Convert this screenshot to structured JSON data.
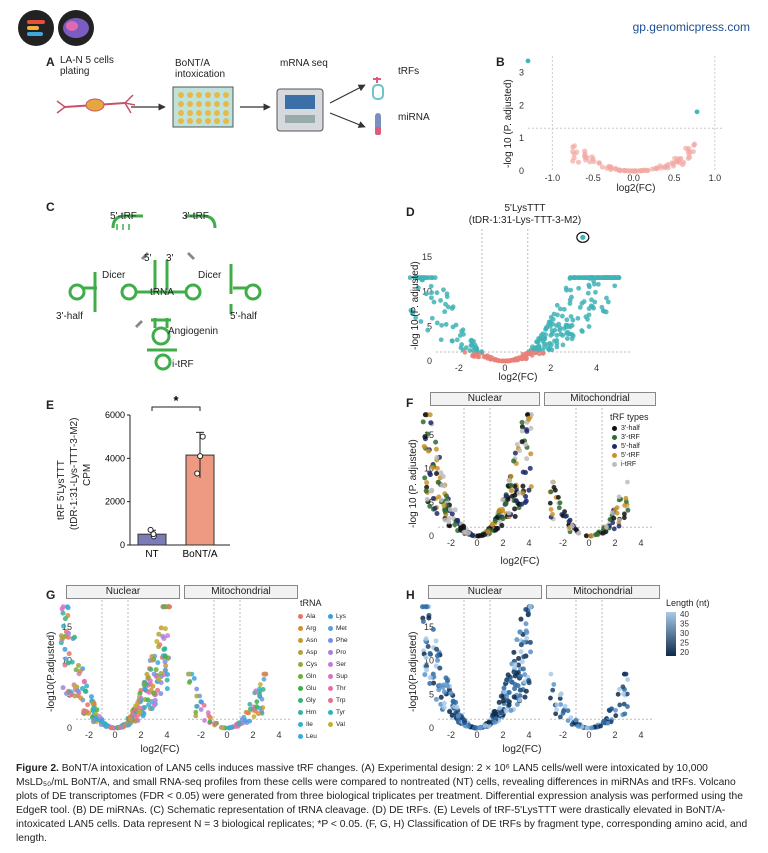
{
  "header": {
    "site": "gp.genomicpress.com"
  },
  "panelA": {
    "letter": "A",
    "cells_label": "LA-N 5 cells\nplating",
    "intox_label": "BoNT/A\nintoxication",
    "seq_label": "mRNA seq",
    "out1": "tRFs",
    "out2": "miRNA"
  },
  "panelB": {
    "letter": "B",
    "ylabel": "-log 10 (P. adjusted)",
    "xlabel": "log2(FC)",
    "xticks": [
      "-1.0",
      "-0.5",
      "0.0",
      "0.5",
      "1.0"
    ],
    "yticks": [
      "0",
      "1",
      "2",
      "3"
    ]
  },
  "panelC": {
    "letter": "C",
    "labels": [
      "5'-tRF",
      "3'-tRF",
      "5'",
      "3'",
      "Dicer",
      "Dicer",
      "tRNA",
      "3'-half",
      "5'-half",
      "Angiogenin",
      "i-tRF"
    ]
  },
  "panelD": {
    "letter": "D",
    "title1": "5'LysTTT",
    "title2": "(tDR-1:31-Lys-TTT-3-M2)",
    "ylabel": "-log 10 (P. adjusted)",
    "xlabel": "log2(FC)",
    "xticks": [
      "-2",
      "0",
      "2",
      "4"
    ],
    "yticks": [
      "0",
      "5",
      "10",
      "15"
    ]
  },
  "panelE": {
    "letter": "E",
    "ylabel1": "tRF 5'LysTTT",
    "ylabel2": "(tDR-1:31-Lys-TTT-3-M2)",
    "ylabel3": "CPM",
    "yticks": [
      "0",
      "2000",
      "4000",
      "6000"
    ],
    "significance": "*",
    "colors": {
      "NT": "#7b7bb8",
      "BoNT/A": "#ee9a82"
    }
  },
  "panelF": {
    "letter": "F",
    "facets": [
      "Nuclear",
      "Mitochondrial"
    ],
    "ylabel": "-log 10 (P. adjusted)",
    "xlabel": "log2(FC)",
    "legend_title": "tRF types",
    "legend": [
      {
        "name": "3'-half",
        "color": "#111111"
      },
      {
        "name": "3'-tRF",
        "color": "#2f6b2f"
      },
      {
        "name": "5'-half",
        "color": "#1c2a6b"
      },
      {
        "name": "5'-tRF",
        "color": "#c9922a"
      },
      {
        "name": "i-tRF",
        "color": "#bdbdbd"
      }
    ],
    "xticks": [
      "-2",
      "0",
      "2",
      "4"
    ],
    "yticks": [
      "0",
      "5",
      "10",
      "15"
    ]
  },
  "panelG": {
    "letter": "G",
    "facets": [
      "Nuclear",
      "Mitochondrial"
    ],
    "ylabel": "-log10(P.adjusted)",
    "xlabel": "log2(FC)",
    "legend_title": "tRNA",
    "legend": [
      {
        "name": "Ala",
        "color": "#e8746b"
      },
      {
        "name": "Lys",
        "color": "#3c9ee0"
      },
      {
        "name": "Arg",
        "color": "#d98a3c"
      },
      {
        "name": "Met",
        "color": "#5aa0d8"
      },
      {
        "name": "Asn",
        "color": "#c79a32"
      },
      {
        "name": "Phe",
        "color": "#7b8ee0"
      },
      {
        "name": "Asp",
        "color": "#b2a23a"
      },
      {
        "name": "Pro",
        "color": "#a583dc"
      },
      {
        "name": "Cys",
        "color": "#9aa83a"
      },
      {
        "name": "Ser",
        "color": "#c77ad8"
      },
      {
        "name": "Gln",
        "color": "#6fae3a"
      },
      {
        "name": "Sup",
        "color": "#de6fc8"
      },
      {
        "name": "Glu",
        "color": "#3caf4a"
      },
      {
        "name": "Thr",
        "color": "#e46fa8"
      },
      {
        "name": "Gly",
        "color": "#3ab07a"
      },
      {
        "name": "Trp",
        "color": "#e87088"
      },
      {
        "name": "Hrn",
        "color": "#35b29e"
      },
      {
        "name": "Tyr",
        "color": "#2fb2c0"
      },
      {
        "name": "Ile",
        "color": "#34b0d2"
      },
      {
        "name": "Val",
        "color": "#c0b130"
      },
      {
        "name": "Leu",
        "color": "#3aa8e0"
      }
    ],
    "xticks": [
      "-2",
      "0",
      "2",
      "4"
    ],
    "yticks": [
      "0",
      "5",
      "10",
      "15"
    ]
  },
  "panelH": {
    "letter": "H",
    "facets": [
      "Nuclear",
      "Mitochondrial"
    ],
    "ylabel": "-log10(P.adjusted)",
    "xlabel": "log2(FC)",
    "legend_title": "Length (nt)",
    "legend_ticks": [
      "40",
      "35",
      "30",
      "25",
      "20"
    ],
    "xticks": [
      "-2",
      "0",
      "2",
      "4"
    ],
    "yticks": [
      "0",
      "5",
      "10",
      "15"
    ]
  },
  "caption": {
    "lead": "Figure 2.",
    "text": " BoNT/A intoxication of LAN5 cells induces massive tRF changes. (A) Experimental design: 2 × 10⁶ LAN5 cells/well were intoxicated by 10,000 MsLD₅₀/mL BoNT/A, and small RNA-seq profiles from these cells were compared to nontreated (NT) cells, revealing differences in miRNAs and tRFs. Volcano plots of DE transcriptomes (FDR < 0.05) were generated from three biological triplicates per treatment. Differential expression analysis was performed using the EdgeR tool. (B) DE miRNAs. (C) Schematic representation of tRNA cleavage. (D) DE tRFs. (E) Levels of tRF-5'LysTTT were drastically elevated in BoNT/A-intoxicated LAN5 cells. Data represent N = 3 biological replicates; *P < 0.05. (F, G, H) Classification of DE tRFs by fragment type, corresponding amino acid, and length."
  },
  "chart_data": [
    {
      "type": "bar",
      "title": "",
      "categories": [
        "NT",
        "BoNT/A"
      ],
      "values": [
        500,
        4150
      ],
      "errors": [
        180,
        1050
      ],
      "points": [
        [
          400,
          500,
          700
        ],
        [
          3300,
          4100,
          5000
        ]
      ],
      "ylim": [
        0,
        6000
      ],
      "ylabel": "tRF 5'LysTTT (tDR-1:31-Lys-TTT-3-M2) CPM",
      "xlabel": ""
    },
    {
      "type": "scatter",
      "title": "DE miRNAs",
      "xlabel": "log2(FC)",
      "ylabel": "-log 10 (P. adjusted)",
      "xlim": [
        -1.25,
        1.1
      ],
      "ylim": [
        0,
        3.5
      ],
      "significant_points": [
        [
          -1.3,
          3.35
        ],
        [
          0.78,
          1.8
        ]
      ]
    }
  ]
}
